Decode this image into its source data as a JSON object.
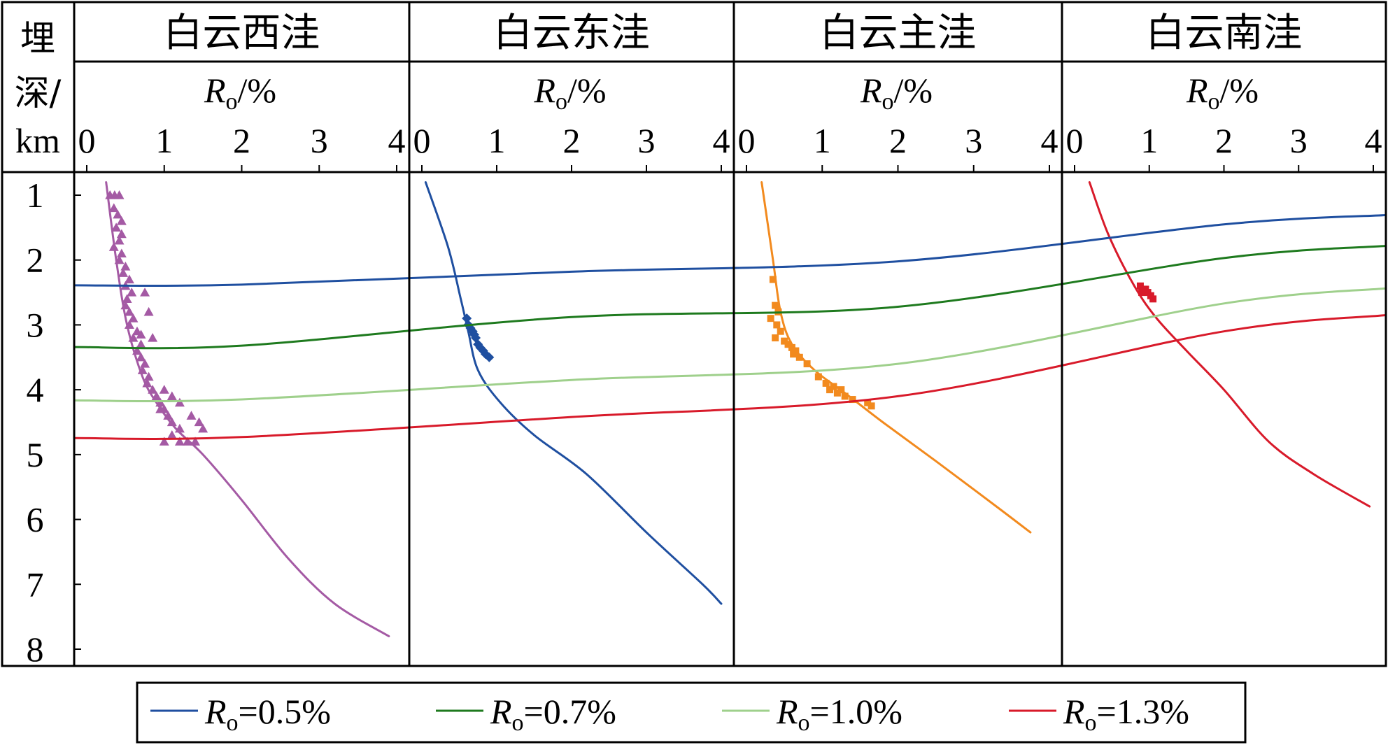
{
  "chart_data": {
    "type": "line",
    "y_axis_label_lines": [
      "埋",
      "深/",
      "km"
    ],
    "y_ticks": [
      1,
      2,
      3,
      4,
      5,
      6,
      7,
      8
    ],
    "ylim": [
      0.8,
      8.0
    ],
    "xlim": [
      0,
      4
    ],
    "x_ticks": [
      0,
      1,
      2,
      3,
      4
    ],
    "x_axis_label": {
      "main": "R",
      "sub": "o",
      "tail": "/%"
    },
    "panels": [
      {
        "title": "白云西洼",
        "curve_color": "#a45aa4",
        "marker": "triangle",
        "curve": [
          [
            0.25,
            0.8
          ],
          [
            0.38,
            2.0
          ],
          [
            0.52,
            3.0
          ],
          [
            0.72,
            3.8
          ],
          [
            0.9,
            4.2
          ],
          [
            1.15,
            4.6
          ],
          [
            1.5,
            5.0
          ],
          [
            2.0,
            5.7
          ],
          [
            2.6,
            6.6
          ],
          [
            3.2,
            7.3
          ],
          [
            3.9,
            7.8
          ]
        ],
        "samples": [
          [
            0.3,
            1.0
          ],
          [
            0.36,
            1.0
          ],
          [
            0.42,
            1.0
          ],
          [
            0.35,
            1.2
          ],
          [
            0.4,
            1.3
          ],
          [
            0.45,
            1.4
          ],
          [
            0.38,
            1.5
          ],
          [
            0.45,
            1.6
          ],
          [
            0.42,
            1.7
          ],
          [
            0.35,
            1.8
          ],
          [
            0.45,
            1.9
          ],
          [
            0.42,
            2.0
          ],
          [
            0.5,
            2.1
          ],
          [
            0.47,
            2.2
          ],
          [
            0.55,
            2.3
          ],
          [
            0.5,
            2.4
          ],
          [
            0.58,
            2.5
          ],
          [
            0.52,
            2.6
          ],
          [
            0.5,
            2.7
          ],
          [
            0.55,
            2.8
          ],
          [
            0.6,
            2.9
          ],
          [
            0.55,
            3.0
          ],
          [
            0.65,
            3.1
          ],
          [
            0.6,
            3.2
          ],
          [
            0.7,
            3.3
          ],
          [
            0.65,
            3.4
          ],
          [
            0.7,
            3.5
          ],
          [
            0.75,
            3.6
          ],
          [
            0.72,
            3.7
          ],
          [
            0.8,
            3.8
          ],
          [
            0.78,
            3.9
          ],
          [
            0.85,
            4.0
          ],
          [
            0.9,
            4.1
          ],
          [
            0.95,
            4.2
          ],
          [
            1.0,
            4.3
          ],
          [
            1.05,
            4.4
          ],
          [
            1.1,
            4.5
          ],
          [
            1.2,
            4.6
          ],
          [
            1.1,
            4.7
          ],
          [
            1.0,
            4.8
          ],
          [
            1.2,
            4.8
          ],
          [
            1.3,
            4.8
          ],
          [
            1.4,
            4.8
          ],
          [
            1.0,
            4.0
          ],
          [
            1.1,
            4.1
          ],
          [
            1.2,
            4.2
          ],
          [
            1.35,
            4.4
          ],
          [
            1.45,
            4.5
          ],
          [
            1.5,
            4.6
          ],
          [
            0.75,
            2.5
          ],
          [
            0.8,
            2.8
          ],
          [
            0.85,
            3.2
          ],
          [
            0.7,
            3.15
          ],
          [
            0.95,
            4.3
          ]
        ]
      },
      {
        "title": "白云东洼",
        "curve_color": "#1f4fa0",
        "marker": "diamond",
        "curve": [
          [
            0.05,
            0.8
          ],
          [
            0.35,
            1.8
          ],
          [
            0.52,
            2.6
          ],
          [
            0.62,
            3.1
          ],
          [
            0.75,
            3.7
          ],
          [
            1.05,
            4.2
          ],
          [
            1.5,
            4.7
          ],
          [
            2.2,
            5.3
          ],
          [
            3.0,
            6.2
          ],
          [
            3.75,
            7.0
          ],
          [
            4.0,
            7.3
          ]
        ],
        "samples": [
          [
            0.6,
            2.9
          ],
          [
            0.62,
            3.0
          ],
          [
            0.65,
            3.05
          ],
          [
            0.68,
            3.1
          ],
          [
            0.7,
            3.15
          ],
          [
            0.72,
            3.2
          ],
          [
            0.75,
            3.3
          ],
          [
            0.78,
            3.35
          ],
          [
            0.82,
            3.4
          ],
          [
            0.85,
            3.45
          ],
          [
            0.9,
            3.5
          ]
        ]
      },
      {
        "title": "白云主洼",
        "curve_color": "#f28a1e",
        "marker": "square",
        "curve": [
          [
            0.2,
            0.8
          ],
          [
            0.35,
            2.0
          ],
          [
            0.45,
            2.8
          ],
          [
            0.6,
            3.3
          ],
          [
            0.9,
            3.7
          ],
          [
            1.3,
            4.05
          ],
          [
            1.8,
            4.5
          ],
          [
            2.5,
            5.1
          ],
          [
            3.3,
            5.8
          ],
          [
            3.75,
            6.2
          ]
        ],
        "samples": [
          [
            0.35,
            2.3
          ],
          [
            0.38,
            2.7
          ],
          [
            0.42,
            2.8
          ],
          [
            0.32,
            2.9
          ],
          [
            0.4,
            3.0
          ],
          [
            0.38,
            3.2
          ],
          [
            0.45,
            3.1
          ],
          [
            0.5,
            3.25
          ],
          [
            0.55,
            3.3
          ],
          [
            0.6,
            3.35
          ],
          [
            0.65,
            3.4
          ],
          [
            0.62,
            3.45
          ],
          [
            0.7,
            3.5
          ],
          [
            0.8,
            3.6
          ],
          [
            0.95,
            3.8
          ],
          [
            1.05,
            3.9
          ],
          [
            1.1,
            4.0
          ],
          [
            1.2,
            4.05
          ],
          [
            1.3,
            4.1
          ],
          [
            1.4,
            4.15
          ],
          [
            1.6,
            4.2
          ],
          [
            1.65,
            4.25
          ],
          [
            1.25,
            4.0
          ],
          [
            1.15,
            3.95
          ]
        ]
      },
      {
        "title": "白云南洼",
        "curve_color": "#d81a2a",
        "marker": "square",
        "curve": [
          [
            0.2,
            0.8
          ],
          [
            0.45,
            1.6
          ],
          [
            0.8,
            2.4
          ],
          [
            1.1,
            2.9
          ],
          [
            1.5,
            3.4
          ],
          [
            2.0,
            4.0
          ],
          [
            2.6,
            4.8
          ],
          [
            3.2,
            5.3
          ],
          [
            3.95,
            5.8
          ]
        ],
        "samples": [
          [
            0.88,
            2.4
          ],
          [
            0.92,
            2.45
          ],
          [
            0.98,
            2.5
          ],
          [
            1.02,
            2.55
          ],
          [
            0.95,
            2.45
          ],
          [
            1.05,
            2.6
          ],
          [
            0.9,
            2.5
          ]
        ]
      }
    ],
    "iso_lines": [
      {
        "label_value": "=0.5%",
        "color": "#1f4fa0",
        "depths": [
          2.38,
          2.18,
          2.02,
          1.45
        ]
      },
      {
        "label_value": "=0.7%",
        "color": "#1e7a1e",
        "depths": [
          3.32,
          2.88,
          2.72,
          1.97
        ]
      },
      {
        "label_value": "=1.0%",
        "color": "#9fd08c",
        "depths": [
          4.15,
          3.85,
          3.6,
          2.67
        ]
      },
      {
        "label_value": "=1.3%",
        "color": "#d81a2a",
        "depths": [
          4.73,
          4.42,
          4.1,
          3.1
        ]
      }
    ],
    "legend_position": "bottom"
  }
}
